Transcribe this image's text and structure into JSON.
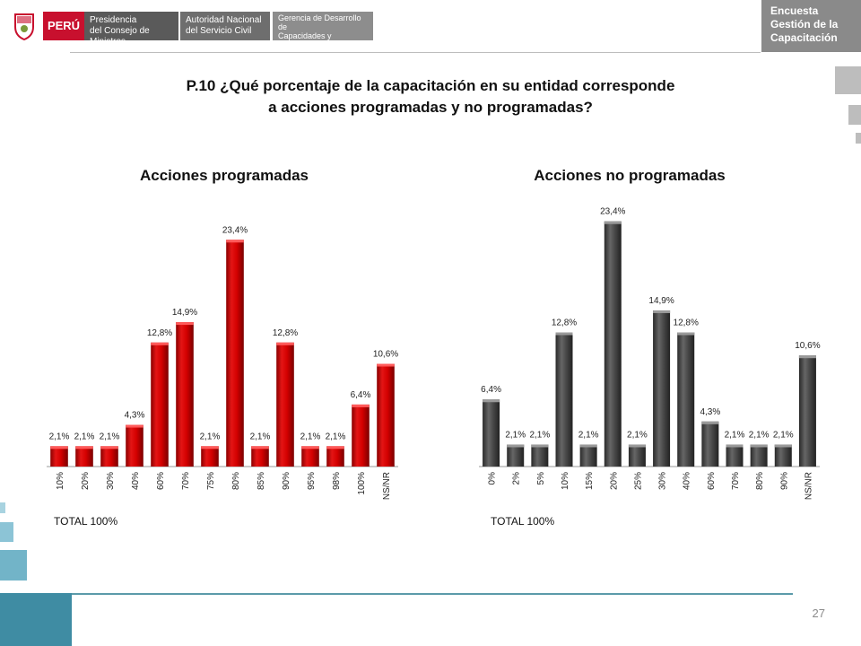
{
  "header": {
    "peru_label": "PERÚ",
    "entity_1": "Presidencia\ndel Consejo de Ministros",
    "entity_2": "Autoridad Nacional\ndel Servicio Civil",
    "entity_3": "Gerencia de Desarrollo de\nCapacidades y Rendimiento\ndel Servicio Civil",
    "tag_line1": "Encuesta",
    "tag_line2": "Gestión de la",
    "tag_line3": "Capacitación"
  },
  "question": {
    "line1": "P.10 ¿Qué porcentaje de la capacitación en su entidad corresponde",
    "line2": "a acciones programadas y no programadas?"
  },
  "footer": {
    "total_left": "TOTAL 100%",
    "total_right": "TOTAL 100%",
    "page_number": "27"
  },
  "colors": {
    "red_bar": "#cc0000",
    "gray_bar": "#4a4a4a",
    "accent_teal": "#5b9aa9"
  },
  "chart_data": [
    {
      "type": "bar",
      "title": "Acciones programadas",
      "categories": [
        "10%",
        "20%",
        "30%",
        "40%",
        "60%",
        "70%",
        "75%",
        "80%",
        "85%",
        "90%",
        "95%",
        "98%",
        "100%",
        "NS/NR"
      ],
      "values": [
        2.1,
        2.1,
        2.1,
        4.3,
        12.8,
        14.9,
        2.1,
        23.4,
        2.1,
        12.8,
        2.1,
        2.1,
        6.4,
        10.6
      ],
      "labels": [
        "2,1%",
        "2,1%",
        "2,1%",
        "4,3%",
        "12,8%",
        "14,9%",
        "2,1%",
        "23,4%",
        "2,1%",
        "12,8%",
        "2,1%",
        "2,1%",
        "6,4%",
        "10,6%"
      ],
      "ylim": [
        0,
        25
      ],
      "xlabel": "",
      "ylabel": "",
      "color": "red"
    },
    {
      "type": "bar",
      "title": "Acciones no programadas",
      "categories": [
        "0%",
        "2%",
        "5%",
        "10%",
        "15%",
        "20%",
        "25%",
        "30%",
        "40%",
        "60%",
        "70%",
        "80%",
        "90%",
        "NS/NR"
      ],
      "values": [
        6.4,
        2.1,
        2.1,
        12.8,
        2.1,
        23.4,
        2.1,
        14.9,
        12.8,
        4.3,
        2.1,
        2.1,
        2.1,
        10.6
      ],
      "labels": [
        "6,4%",
        "2,1%",
        "2,1%",
        "12,8%",
        "2,1%",
        "23,4%",
        "2,1%",
        "14,9%",
        "12,8%",
        "4,3%",
        "2,1%",
        "2,1%",
        "2,1%",
        "10,6%"
      ],
      "ylim": [
        0,
        25
      ],
      "xlabel": "",
      "ylabel": "",
      "color": "gray"
    }
  ]
}
